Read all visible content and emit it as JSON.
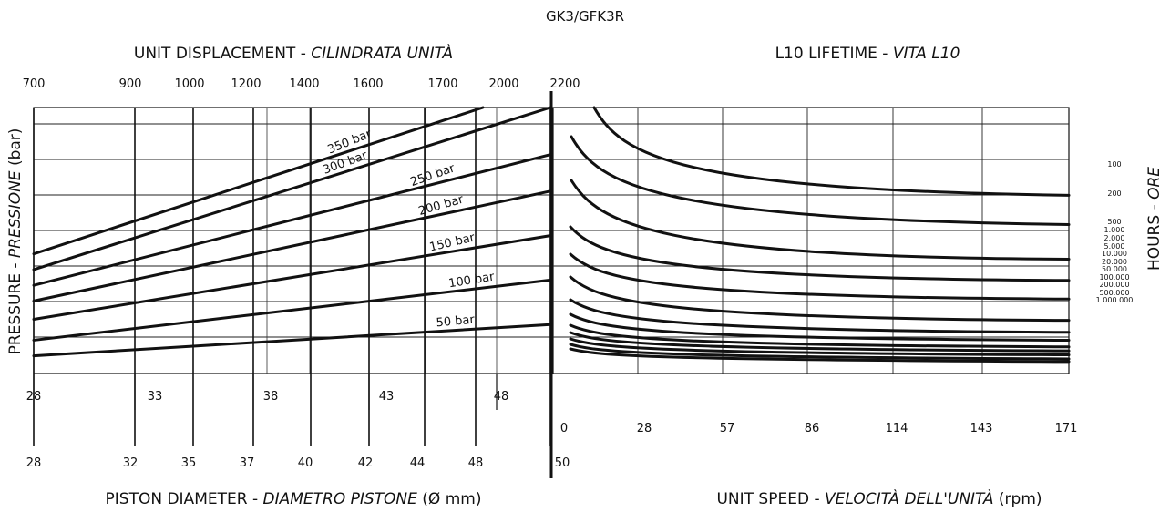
{
  "title": "GK3/GFK3R",
  "left_panel": {
    "top_label_main": "UNIT DISPLACEMENT - ",
    "top_label_italic": "CILINDRATA UNITÀ",
    "top_ticks": [
      "700",
      "900",
      "1000",
      "1200",
      "1400",
      "1600",
      "1700",
      "2000",
      "2200"
    ],
    "y_label_main": "PRESSURE - ",
    "y_label_italic": "PRESSIONE",
    "y_label_unit": " (bar)",
    "upper_bottom_ticks": [
      "28",
      "33",
      "38",
      "43",
      "48"
    ],
    "lower_bottom_ticks": [
      "28",
      "32",
      "35",
      "37",
      "40",
      "42",
      "44",
      "48",
      "50"
    ],
    "bottom_label_main": "PISTON DIAMETER - ",
    "bottom_label_italic": "DIAMETRO PISTONE",
    "bottom_label_unit": " (Ø mm)"
  },
  "right_panel": {
    "top_label_main": "L10 LIFETIME - ",
    "top_label_italic": "VITA L10",
    "x_ticks": [
      "0",
      "28",
      "57",
      "86",
      "114",
      "143",
      "171"
    ],
    "bottom_label_main": "UNIT SPEED - ",
    "bottom_label_italic": "VELOCITÀ DELL'UNITÀ",
    "bottom_label_unit": " (rpm)",
    "right_label_main": "HOURS - ",
    "right_label_italic": "ORE"
  },
  "chart_data": [
    {
      "type": "line",
      "x_axis": "piston diameter",
      "x": [
        28,
        50
      ],
      "series": [
        {
          "name": "350 bar",
          "label": "350 bar",
          "values": [
            0.44,
            1.0
          ]
        },
        {
          "name": "300 bar",
          "label": "300 bar",
          "values": [
            0.38,
            1.0
          ]
        },
        {
          "name": "250 bar",
          "label": "250 bar",
          "values": [
            0.32,
            0.82
          ]
        },
        {
          "name": "200 bar",
          "label": "200 bar",
          "values": [
            0.26,
            0.68
          ]
        },
        {
          "name": "150 bar",
          "label": "150 bar",
          "values": [
            0.19,
            0.51
          ]
        },
        {
          "name": "100 bar",
          "label": "100 bar",
          "values": [
            0.11,
            0.34
          ]
        },
        {
          "name": "50 bar",
          "label": "50 bar",
          "values": [
            0.05,
            0.17
          ]
        }
      ]
    },
    {
      "type": "line",
      "x_axis": "unit speed (rpm)",
      "xlim": [
        0,
        171
      ],
      "x_ticks": [
        0,
        28,
        57,
        86,
        114,
        143,
        171
      ],
      "hours_labels": [
        "100",
        "200",
        "500",
        "1.000",
        "2.000",
        "5.000",
        "10.000",
        "20.000",
        "50.000",
        "100.000",
        "200.000",
        "500.000",
        "1.000.000"
      ],
      "curves": [
        {
          "hours": "100",
          "level": 0.67,
          "ends_at_right": 0.67
        },
        {
          "hours": "200",
          "level": 0.56,
          "ends_at_right": 0.56
        },
        {
          "hours": "500",
          "level": 0.43,
          "ends_at_right": 0.43
        },
        {
          "hours": "1.000",
          "level": 0.35,
          "ends_at_right": 0.35
        },
        {
          "hours": "2.000",
          "level": 0.28,
          "ends_at_right": 0.28
        },
        {
          "hours": "5.000",
          "level": 0.2,
          "ends_at_right": 0.2
        },
        {
          "hours": "10.000",
          "level": 0.155,
          "ends_at_right": 0.155
        },
        {
          "hours": "20.000",
          "level": 0.125,
          "ends_at_right": 0.125
        },
        {
          "hours": "50.000",
          "level": 0.1,
          "ends_at_right": 0.1
        },
        {
          "hours": "100.000",
          "level": 0.085,
          "ends_at_right": 0.085
        },
        {
          "hours": "200.000",
          "level": 0.07,
          "ends_at_right": 0.07
        },
        {
          "hours": "500.000",
          "level": 0.055,
          "ends_at_right": 0.055
        },
        {
          "hours": "1.000.000",
          "level": 0.045,
          "ends_at_right": 0.045
        }
      ]
    }
  ]
}
